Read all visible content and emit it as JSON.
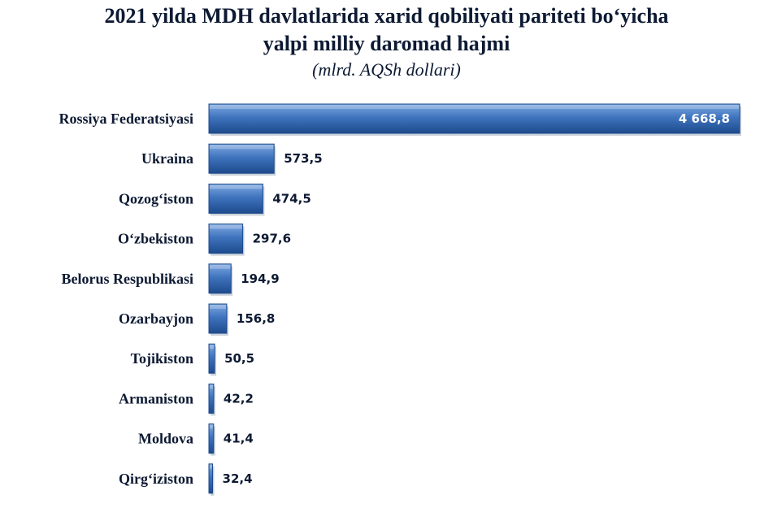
{
  "title_line1": "2021 yilda MDH davlatlarida xarid qobiliyati pariteti bo‘yicha",
  "title_line2": "yalpi milliy daromad hajmi",
  "subtitle": "(mlrd. AQSh dollari)",
  "colors": {
    "bar": "#3f74be",
    "bar_light": "#7ea8e0",
    "bar_dark": "#1d4a8c",
    "text": "#0d1a33"
  },
  "chart_data": {
    "type": "bar",
    "orientation": "horizontal",
    "title": "2021 yilda MDH davlatlarida xarid qobiliyati pariteti bo‘yicha yalpi milliy daromad hajmi",
    "subtitle": "(mlrd. AQSh dollari)",
    "categories": [
      "Rossiya Federatsiyasi",
      "Ukraina",
      "Qozog‘iston",
      "O‘zbekiston",
      "Belorus Respublikasi",
      "Ozarbayjon",
      "Tojikiston",
      "Armaniston",
      "Moldova",
      "Qirg‘iziston"
    ],
    "values": [
      4668.8,
      573.5,
      474.5,
      297.6,
      194.9,
      156.8,
      50.5,
      42.2,
      41.4,
      32.4
    ],
    "labels": [
      "4 668,8",
      "573,5",
      "474,5",
      "297,6",
      "194,9",
      "156,8",
      "50,5",
      "42,2",
      "41,4",
      "32,4"
    ],
    "xlim": [
      0,
      4668.8
    ],
    "grid": false,
    "legend": "none"
  }
}
